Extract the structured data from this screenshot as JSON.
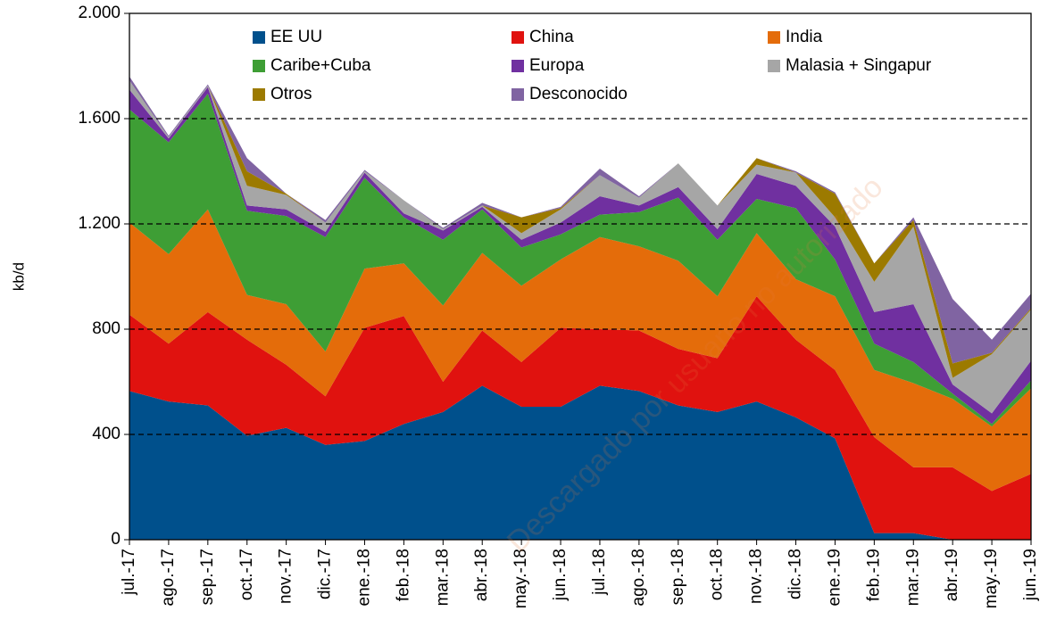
{
  "chart_data": {
    "type": "stacked_area",
    "y_label": "kb/d",
    "annotation": "Descargado por usuario no autorizado",
    "categories": [
      "jul.-17",
      "ago.-17",
      "sep.-17",
      "oct.-17",
      "nov.-17",
      "dic.-17",
      "ene.-18",
      "feb.-18",
      "mar.-18",
      "abr.-18",
      "may.-18",
      "jun.-18",
      "jul.-18",
      "ago.-18",
      "sep.-18",
      "oct.-18",
      "nov.-18",
      "dic.-18",
      "ene.-19",
      "feb.-19",
      "mar.-19",
      "abr.-19",
      "may.-19",
      "jun.-19"
    ],
    "series": [
      {
        "name": "EE UU",
        "color": "#00508c",
        "values": [
          565,
          525,
          510,
          395,
          425,
          360,
          375,
          440,
          485,
          585,
          505,
          505,
          585,
          565,
          510,
          485,
          525,
          465,
          385,
          25,
          25,
          0,
          0,
          0
        ]
      },
      {
        "name": "China",
        "color": "#e0120f",
        "values": [
          290,
          220,
          355,
          365,
          240,
          185,
          430,
          410,
          115,
          210,
          170,
          300,
          215,
          230,
          215,
          205,
          400,
          295,
          260,
          365,
          250,
          275,
          185,
          250
        ]
      },
      {
        "name": "India",
        "color": "#e46c0a",
        "values": [
          350,
          340,
          390,
          170,
          230,
          170,
          225,
          200,
          290,
          295,
          290,
          260,
          350,
          320,
          335,
          235,
          240,
          230,
          280,
          255,
          320,
          260,
          245,
          325
        ]
      },
      {
        "name": "Caribe+Cuba",
        "color": "#3e9e35",
        "values": [
          430,
          425,
          440,
          320,
          335,
          435,
          345,
          175,
          250,
          165,
          145,
          95,
          85,
          130,
          240,
          215,
          130,
          270,
          140,
          100,
          80,
          20,
          10,
          30
        ]
      },
      {
        "name": "Europa",
        "color": "#7030a0",
        "values": [
          75,
          15,
          25,
          20,
          25,
          20,
          20,
          15,
          35,
          10,
          30,
          45,
          70,
          25,
          40,
          40,
          95,
          85,
          125,
          120,
          220,
          35,
          40,
          75
        ]
      },
      {
        "name": "Malasia + Singapur",
        "color": "#a6a6a6",
        "values": [
          35,
          5,
          5,
          75,
          55,
          35,
          5,
          50,
          5,
          5,
          25,
          50,
          80,
          30,
          90,
          90,
          35,
          50,
          35,
          115,
          295,
          25,
          225,
          195
        ]
      },
      {
        "name": "Otros",
        "color": "#9c7a00",
        "values": [
          0,
          0,
          0,
          55,
          5,
          0,
          0,
          0,
          0,
          0,
          60,
          5,
          0,
          0,
          0,
          0,
          25,
          0,
          90,
          70,
          25,
          55,
          5,
          5
        ]
      },
      {
        "name": "Desconocido",
        "color": "#8064a2",
        "values": [
          15,
          5,
          5,
          50,
          0,
          10,
          5,
          0,
          5,
          10,
          0,
          5,
          25,
          5,
          0,
          0,
          0,
          5,
          5,
          0,
          10,
          245,
          50,
          55
        ]
      }
    ],
    "ylim": [
      0,
      2000
    ],
    "yticks": [
      0,
      400,
      800,
      {
        "value": 1200,
        "label": "1.200"
      },
      {
        "value": 1600,
        "label": "1.600"
      },
      {
        "value": 2000,
        "label": "2.000"
      }
    ],
    "grid": true
  }
}
